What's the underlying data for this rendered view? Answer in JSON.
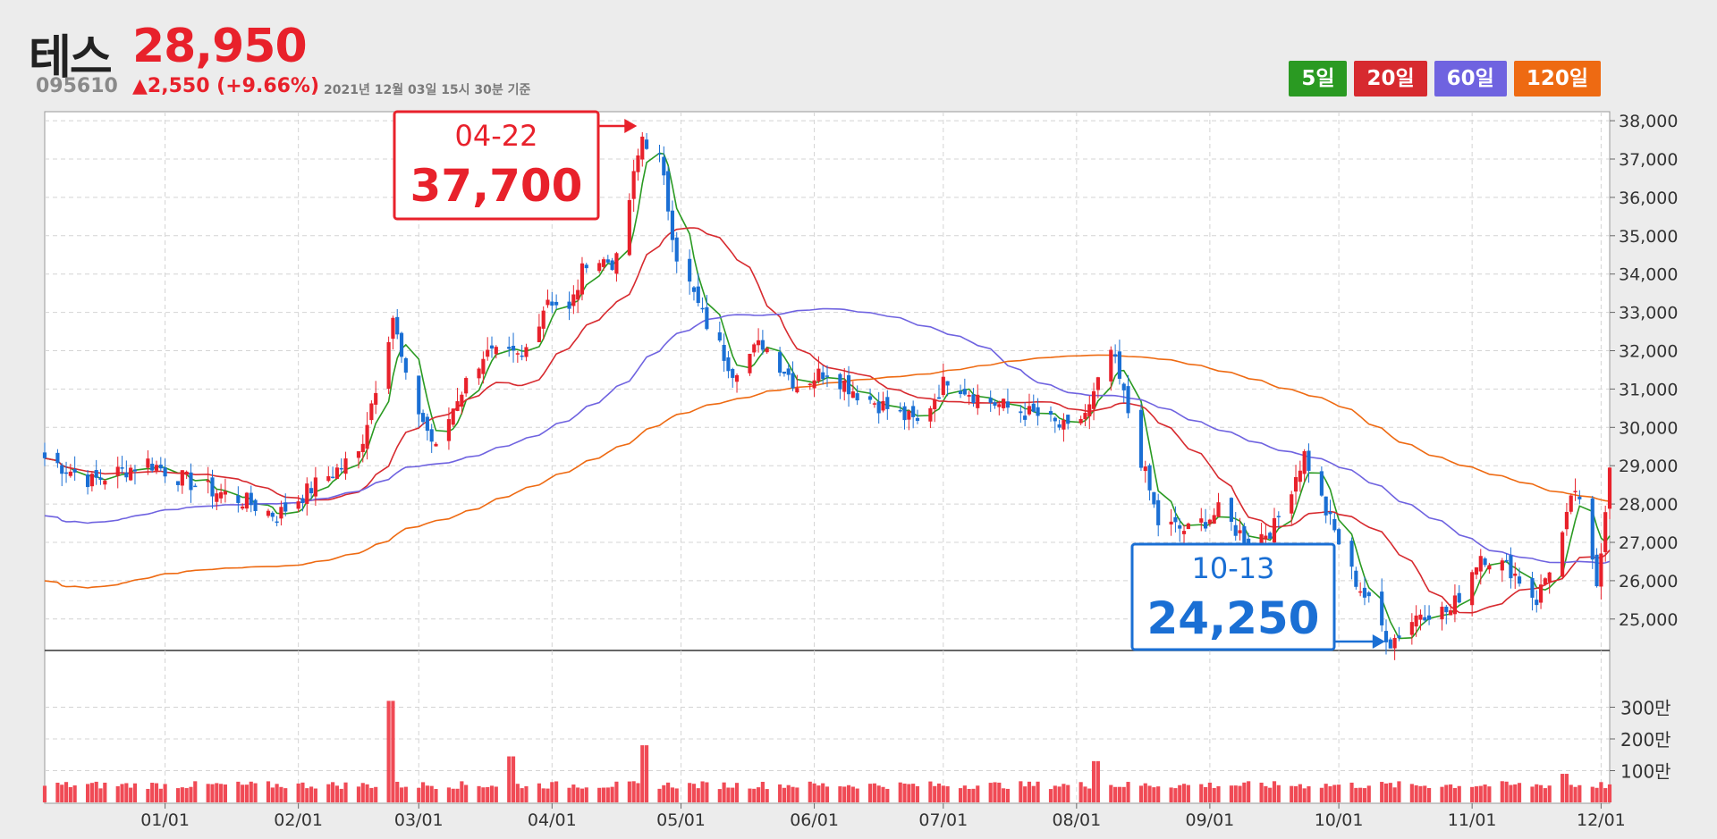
{
  "stock": {
    "name": "테스",
    "price": "28,950",
    "code": "095610",
    "change": "▲2,550 (+9.66%)",
    "timestamp": "2021년 12월 03일 15시 30분 기준"
  },
  "ma_buttons": [
    {
      "label": "5일",
      "color": "#2a9a22"
    },
    {
      "label": "20일",
      "color": "#d72a2f"
    },
    {
      "label": "60일",
      "color": "#6f63e0"
    },
    {
      "label": "120일",
      "color": "#ee6a12"
    }
  ],
  "colors": {
    "up": "#e8212b",
    "down": "#1a6fd4",
    "volume": "#f04a55",
    "high_box": "#e8212b",
    "low_box": "#1a6fd4"
  },
  "chart_data": {
    "type": "candlestick",
    "x_range": [
      "2020-12-04",
      "2021-12-03"
    ],
    "price_ylim": [
      24200,
      38100
    ],
    "price_ticks": [
      "25,000",
      "26,000",
      "27,000",
      "28,000",
      "29,000",
      "30,000",
      "31,000",
      "32,000",
      "33,000",
      "34,000",
      "35,000",
      "36,000",
      "37,000",
      "38,000"
    ],
    "volume_ticks": [
      "100만",
      "200만",
      "300만"
    ],
    "x_ticks": [
      "01/01",
      "02/01",
      "03/01",
      "04/01",
      "05/01",
      "06/01",
      "07/01",
      "08/01",
      "09/01",
      "10/01",
      "11/01",
      "12/01"
    ],
    "close_trend": [
      [
        "2020-12-04",
        29200
      ],
      [
        "2020-12-15",
        28600
      ],
      [
        "2020-12-28",
        29100
      ],
      [
        "2021-01-08",
        28500
      ],
      [
        "2021-01-19",
        28100
      ],
      [
        "2021-01-27",
        27700
      ],
      [
        "2021-02-05",
        28500
      ],
      [
        "2021-02-15",
        29300
      ],
      [
        "2021-02-23",
        32900
      ],
      [
        "2021-02-26",
        31200
      ],
      [
        "2021-03-05",
        29400
      ],
      [
        "2021-03-10",
        30800
      ],
      [
        "2021-03-16",
        31900
      ],
      [
        "2021-03-25",
        31800
      ],
      [
        "2021-03-31",
        33400
      ],
      [
        "2021-04-05",
        33000
      ],
      [
        "2021-04-09",
        34400
      ],
      [
        "2021-04-16",
        34300
      ],
      [
        "2021-04-22",
        37600
      ],
      [
        "2021-04-26",
        37000
      ],
      [
        "2021-04-30",
        34500
      ],
      [
        "2021-05-06",
        32900
      ],
      [
        "2021-05-13",
        31500
      ],
      [
        "2021-05-20",
        32200
      ],
      [
        "2021-05-28",
        31100
      ],
      [
        "2021-06-04",
        31500
      ],
      [
        "2021-06-11",
        30900
      ],
      [
        "2021-06-18",
        30500
      ],
      [
        "2021-06-25",
        30100
      ],
      [
        "2021-07-02",
        31300
      ],
      [
        "2021-07-09",
        30800
      ],
      [
        "2021-07-16",
        30500
      ],
      [
        "2021-07-23",
        30300
      ],
      [
        "2021-07-30",
        29900
      ],
      [
        "2021-08-04",
        30500
      ],
      [
        "2021-08-09",
        32000
      ],
      [
        "2021-08-13",
        30400
      ],
      [
        "2021-08-20",
        27500
      ],
      [
        "2021-08-27",
        27300
      ],
      [
        "2021-09-03",
        27800
      ],
      [
        "2021-09-10",
        27000
      ],
      [
        "2021-09-16",
        27400
      ],
      [
        "2021-09-23",
        29300
      ],
      [
        "2021-09-28",
        27800
      ],
      [
        "2021-10-04",
        26200
      ],
      [
        "2021-10-13",
        24400
      ],
      [
        "2021-10-20",
        25200
      ],
      [
        "2021-10-27",
        25200
      ],
      [
        "2021-11-03",
        26700
      ],
      [
        "2021-11-10",
        26300
      ],
      [
        "2021-11-16",
        25500
      ],
      [
        "2021-11-22",
        27200
      ],
      [
        "2021-11-25",
        28400
      ],
      [
        "2021-11-30",
        25900
      ],
      [
        "2021-12-03",
        28950
      ]
    ],
    "ma": [
      {
        "name": "5일",
        "period": 5,
        "color": "#2a9a22"
      },
      {
        "name": "20일",
        "period": 20,
        "color": "#d72a2f"
      },
      {
        "name": "60일",
        "period": 60,
        "color": "#6f63e0"
      },
      {
        "name": "120일",
        "period": 120,
        "color": "#ee6a12"
      }
    ],
    "max_marker": {
      "date_label": "04-22",
      "date": "2021-04-22",
      "value": 37700,
      "value_label": "37,700"
    },
    "min_marker": {
      "date_label": "10-13",
      "date": "2021-10-13",
      "value": 24250,
      "value_label": "24,250"
    },
    "volume_spikes": [
      [
        "2021-02-22",
        3200000
      ],
      [
        "2021-03-22",
        1450000
      ],
      [
        "2021-04-23",
        1800000
      ],
      [
        "2021-08-06",
        1300000
      ],
      [
        "2021-11-22",
        900000
      ]
    ]
  }
}
